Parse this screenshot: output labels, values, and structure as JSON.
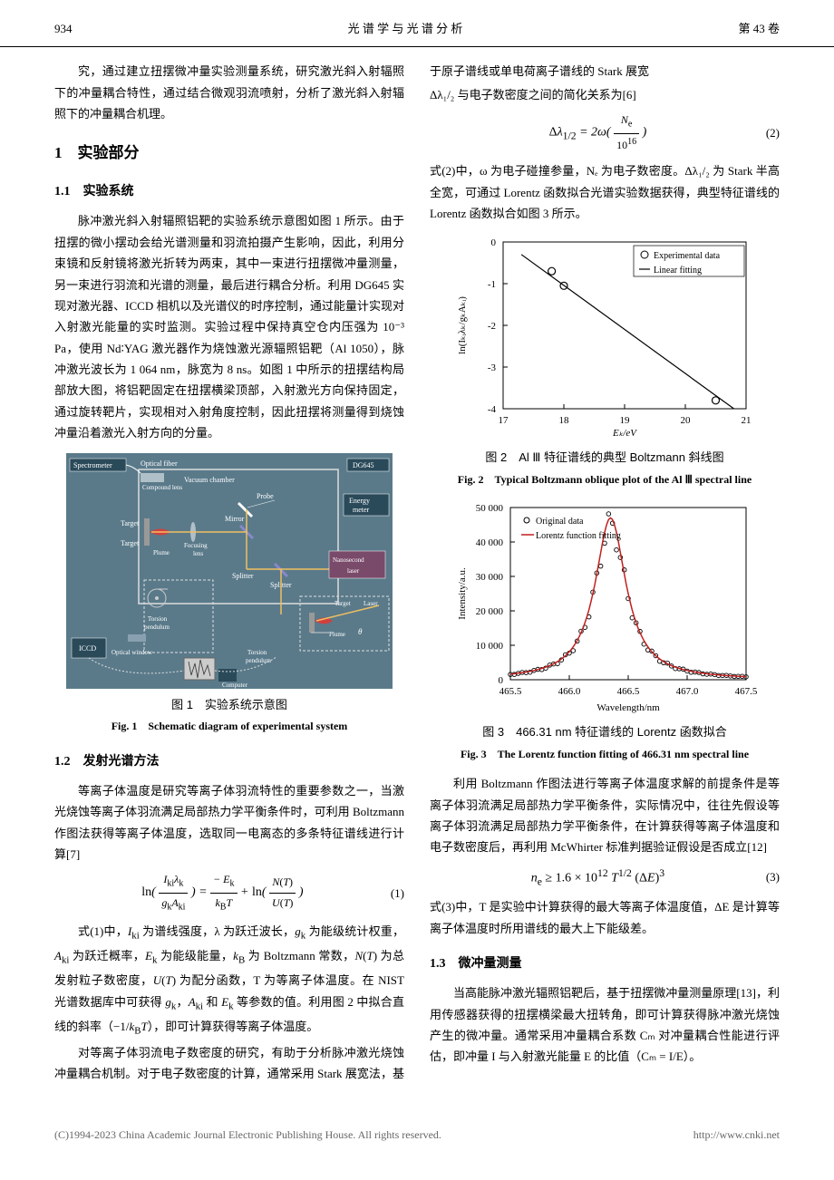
{
  "header": {
    "page_num": "934",
    "journal": "光 谱 学 与 光 谱 分 析",
    "volume": "第 43 卷"
  },
  "intro_para": "究，通过建立扭摆微冲量实验测量系统，研究激光斜入射辐照下的冲量耦合特性，通过结合微观羽流喷射，分析了激光斜入射辐照下的冲量耦合机理。",
  "section1": {
    "num": "1",
    "title": "实验部分"
  },
  "subsection11": {
    "num": "1.1",
    "title": "实验系统",
    "para": "脉冲激光斜入射辐照铝靶的实验系统示意图如图 1 所示。由于扭摆的微小摆动会给光谱测量和羽流拍摄产生影响，因此，利用分束镜和反射镜将激光折转为两束，其中一束进行扭摆微冲量测量，另一束进行羽流和光谱的测量，最后进行耦合分析。利用 DG645 实现对激光器、ICCD 相机以及光谱仪的时序控制，通过能量计实现对入射激光能量的实时监测。实验过程中保持真空仓内压强为 10⁻³ Pa，使用 Nd∶YAG 激光器作为烧蚀激光源辐照铝靶（Al 1050），脉冲激光波长为 1 064 nm，脉宽为 8 ns。如图 1 中所示的扭摆结构局部放大图，将铝靶固定在扭摆横梁顶部，入射激光方向保持固定，通过旋转靶片，实现相对入射角度控制，因此扭摆将测量得到烧蚀冲量沿着激光入射方向的分量。"
  },
  "fig1": {
    "caption_cn": "图 1　实验系统示意图",
    "caption_en": "Fig. 1　Schematic diagram of experimental system",
    "labels": {
      "spectrometer": "Spectrometer",
      "fiber": "Optical fiber",
      "compound_lens": "Compound lens",
      "vacuum": "Vacuum chamber",
      "probe": "Probe",
      "energy": "Energy meter",
      "mirror": "Mirror",
      "target": "Target",
      "focusing": "Focusing lens",
      "plume": "Plume",
      "splitter": "Splitter",
      "torsion": "Torsion pendulum",
      "ns_laser": "Nanosecond laser",
      "optical_window": "Optical window",
      "iccd": "ICCD",
      "computer": "Computer",
      "laser": "Laser",
      "dg645": "DG645"
    },
    "colors": {
      "bg": "#4a6a7a",
      "box": "#1a3a4a",
      "label": "#ffffff"
    }
  },
  "subsection12": {
    "num": "1.2",
    "title": "发射光谱方法",
    "para1": "等离子体温度是研究等离子体羽流特性的重要参数之一，当激光烧蚀等离子体羽流满足局部热力学平衡条件时，可利用 Boltzmann 作图法获得等离子体温度，选取同一电离态的多条特征谱线进行计算[7]",
    "para2a": "式(1)中，",
    "para2b": " 为谱线强度，λ 为跃迁波长，",
    "para2c": " 为能级统计权重，",
    "para2d": " 为跃迁概率，",
    "para2e": " 为能级能量，",
    "para2f": " 为 Boltzmann 常数，",
    "para2g": " 为总发射粒子数密度，",
    "para2h": " 为配分函数，T 为等离子体温度。在 NIST 光谱数据库中可获得 ",
    "para2i": " 和 ",
    "para2j": " 等参数的值。利用图 2 中拟合直线的斜率（",
    "para2k": "），即可计算获得等离子体温度。",
    "para3": "对等离子体羽流电子数密度的研究，有助于分析脉冲激光烧蚀冲量耦合机制。对于电子数密度的计算，通常采用 Stark 展宽法，基于原子谱线或单电荷离子谱线的 Stark 展宽",
    "para4": "Δλ₁/₂ 与电子数密度之间的简化关系为[6]",
    "para5": "式(2)中，ω 为电子碰撞参量，Nₑ 为电子数密度。Δλ₁/₂ 为 Stark 半高全宽，可通过 Lorentz 函数拟合光谱实验数据获得，典型特征谱线的 Lorentz 函数拟合如图 3 所示。",
    "para6": "利用 Boltzmann 作图法进行等离子体温度求解的前提条件是等离子体羽流满足局部热力学平衡条件，实际情况中，往往先假设等离子体羽流满足局部热力学平衡条件，在计算获得等离子体温度和电子数密度后，再利用 McWhirter 标准判据验证假设是否成立[12]",
    "para7": "式(3)中，T 是实验中计算获得的最大等离子体温度值，ΔE 是计算等离子体温度时所用谱线的最大上下能级差。"
  },
  "eq1": {
    "num": "(1)"
  },
  "eq2": {
    "num": "(2)"
  },
  "eq3": {
    "num": "(3)",
    "text": "nₑ ≥ 1.6 × 10¹² T^(1/2) (ΔE)³"
  },
  "fig2": {
    "caption_cn": "图 2　Al Ⅲ 特征谱线的典型 Boltzmann 斜线图",
    "caption_en": "Fig. 2　Typical Boltzmann oblique plot of the Al Ⅲ spectral line",
    "chart": {
      "type": "scatter_with_line",
      "xlabel": "Eₖ/eV",
      "ylabel": "ln(Iₖᵢλₖ/gₖAₖᵢ)",
      "xlim": [
        17,
        21
      ],
      "ylim": [
        -4,
        0
      ],
      "xticks": [
        17,
        18,
        19,
        20,
        21
      ],
      "yticks": [
        -4,
        -3,
        -2,
        -1,
        0
      ],
      "points": [
        {
          "x": 17.8,
          "y": -0.7
        },
        {
          "x": 18.0,
          "y": -1.05
        },
        {
          "x": 20.5,
          "y": -3.8
        }
      ],
      "line_start": {
        "x": 17.3,
        "y": -0.3
      },
      "line_end": {
        "x": 20.8,
        "y": -4.0
      },
      "legend": [
        "Experimental data",
        "Linear fitting"
      ],
      "marker_color": "#000000",
      "line_color": "#000000",
      "bg_color": "#ffffff",
      "font_size": 11
    }
  },
  "fig3": {
    "caption_cn": "图 3　466.31 nm 特征谱线的 Lorentz 函数拟合",
    "caption_en": "Fig. 3　The Lorentz function fitting of 466.31 nm spectral line",
    "chart": {
      "type": "scatter_with_curve",
      "xlabel": "Wavelength/nm",
      "ylabel": "Intensity/a.u.",
      "xlim": [
        465.5,
        467.5
      ],
      "ylim": [
        0,
        50000
      ],
      "xticks": [
        465.5,
        466.0,
        466.5,
        467.0,
        467.5
      ],
      "yticks": [
        0,
        10000,
        20000,
        30000,
        40000,
        50000
      ],
      "ytick_labels": [
        "0",
        "10 000",
        "20 000",
        "30 000",
        "40 000",
        "50 000"
      ],
      "peak_x": 466.35,
      "peak_y": 47000,
      "legend": [
        "Original data",
        "Lorentz function fitting"
      ],
      "marker_color": "#000000",
      "curve_color": "#c02020",
      "bg_color": "#ffffff",
      "font_size": 11
    }
  },
  "subsection13": {
    "num": "1.3",
    "title": "微冲量测量",
    "para": "当高能脉冲激光辐照铝靶后，基于扭摆微冲量测量原理[13]，利用传感器获得的扭摆横梁最大扭转角，即可计算获得脉冲激光烧蚀产生的微冲量。通常采用冲量耦合系数 Cₘ 对冲量耦合性能进行评估，即冲量 I 与入射激光能量 E 的比值（Cₘ = I/E）。"
  },
  "footer": {
    "copyright": "(C)1994-2023 China Academic Journal Electronic Publishing House. All rights reserved.",
    "url": "http://www.cnki.net"
  }
}
